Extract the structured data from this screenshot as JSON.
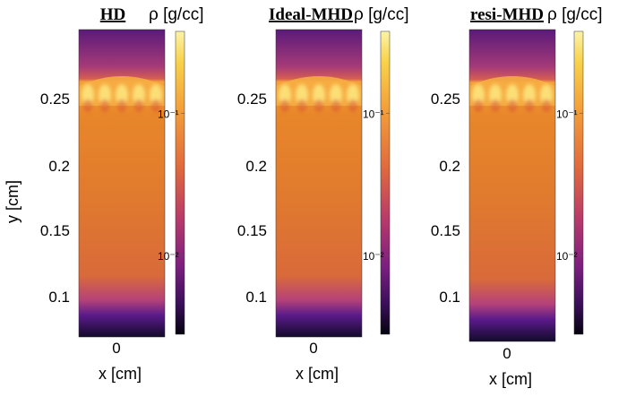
{
  "chart_data": {
    "type": "heatmap",
    "xlabel": "x [cm]",
    "ylabel": "y [cm]",
    "colorbar_label": "ρ [g/cc]",
    "colormap": "inferno/plasma (dark purple → orange → light yellow)",
    "colorbar_scale": "log",
    "colorbar_ticks": [
      "10⁻¹",
      "10⁻²"
    ],
    "panels": [
      {
        "title": "HD",
        "x_ticks": [
          "0"
        ],
        "y_ticks": [
          "0.25",
          "0.2",
          "0.15",
          "0.1"
        ]
      },
      {
        "title": "Ideal-MHD",
        "x_ticks": [
          "0"
        ],
        "y_ticks": [
          "0.25",
          "0.2",
          "0.15",
          "0.1"
        ]
      },
      {
        "title": "resi-MHD",
        "x_ticks": [
          "0"
        ],
        "y_ticks": [
          "0.25",
          "0.2",
          "0.15",
          "0.1"
        ]
      }
    ],
    "colors": {
      "dark": "#120a2a",
      "purple": "#5a1a7a",
      "magenta": "#a53a78",
      "orange": "#e8862a",
      "bright_orange": "#f4a13a",
      "yellow": "#fcf4a8"
    }
  }
}
